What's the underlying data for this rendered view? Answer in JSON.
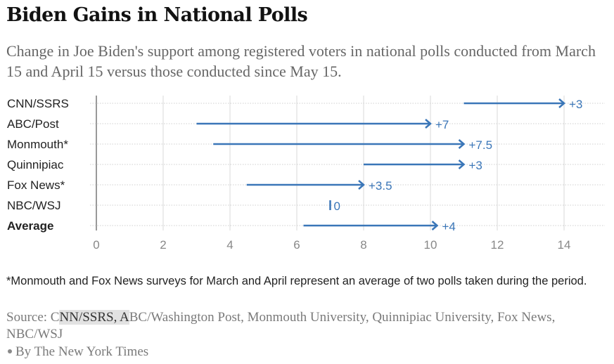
{
  "header": {
    "title": "Biden Gains in National Polls",
    "subtitle": "Change in Joe Biden's support among registered voters in national polls conducted from March 15 and April 15 versus those conducted since May 15."
  },
  "colors": {
    "arrow": "#3a76b8",
    "grid": "#e0e0e0",
    "axis_zero": "#999999"
  },
  "chart_data": {
    "type": "arrow",
    "title": "Biden Gains in National Polls",
    "xlabel": "",
    "ylabel": "",
    "xlim": [
      0,
      15
    ],
    "xticks": [
      0,
      2,
      4,
      6,
      8,
      10,
      12,
      14
    ],
    "grid": true,
    "categories": [
      "CNN/SSRS",
      "ABC/Post",
      "Monmouth*",
      "Quinnipiac",
      "Fox News*",
      "NBC/WSJ",
      "Average"
    ],
    "bold_categories": [
      "Average"
    ],
    "series": [
      {
        "name": "March 15 - April 15",
        "values": [
          11,
          3,
          3.5,
          8,
          4.5,
          7,
          6.2
        ]
      },
      {
        "name": "Since May 15",
        "values": [
          14,
          10,
          11,
          11,
          8,
          7,
          10.2
        ]
      }
    ],
    "change_labels": [
      "+3",
      "+7",
      "+7.5",
      "+3",
      "+3.5",
      "0",
      "+4"
    ]
  },
  "footer": {
    "note": "*Monmouth and Fox News surveys for March and April represent an average of two polls taken during the period.",
    "source_prefix": "Source: C",
    "source_highlight": "NN/SSRS, A",
    "source_rest": "BC/Washington Post, Monmouth University, Quinnipiac University, Fox News, NBC/WSJ",
    "credit": "By The New York Times"
  }
}
